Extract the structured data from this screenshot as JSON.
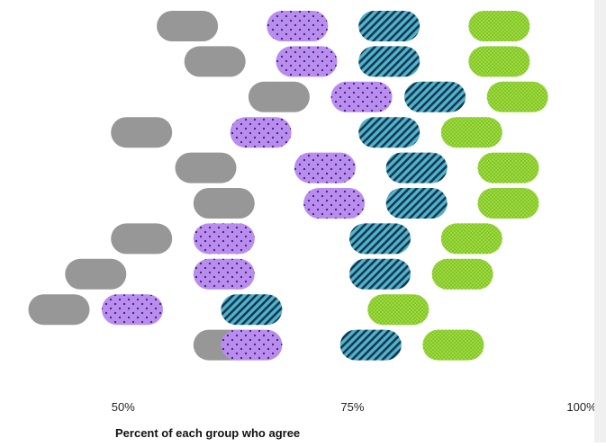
{
  "chart_data": {
    "type": "scatter",
    "title": "",
    "xlabel": "Percent of each group who agree",
    "ylabel": "",
    "xlim": [
      40,
      100
    ],
    "x_ticks": [
      {
        "value": 50,
        "label": "50%"
      },
      {
        "value": 75,
        "label": "75%"
      },
      {
        "value": 100,
        "label": "100%"
      }
    ],
    "grid": false,
    "legend": "none",
    "rows": 10,
    "series": [
      {
        "pattern": "solid",
        "color": "#8c8c8c",
        "values": [
          57,
          60,
          67,
          52,
          59,
          61,
          52,
          47,
          43,
          61
        ]
      },
      {
        "pattern": "dots",
        "color": "#b98cf0",
        "values": [
          69,
          70,
          76,
          65,
          72,
          73,
          61,
          61,
          51,
          64
        ]
      },
      {
        "pattern": "diagonal-stripes",
        "color": "#3a9fc0",
        "values": [
          79,
          79,
          84,
          79,
          82,
          82,
          78,
          78,
          64,
          77
        ]
      },
      {
        "pattern": "fine-dots",
        "color": "#9bdc3a",
        "values": [
          91,
          91,
          93,
          88,
          92,
          92,
          88,
          87,
          80,
          86
        ]
      }
    ]
  }
}
